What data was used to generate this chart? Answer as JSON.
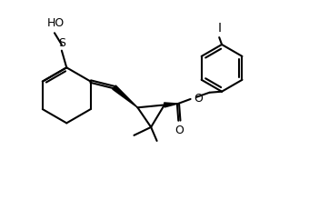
{
  "background_color": "#ffffff",
  "line_color": "#000000",
  "line_width": 1.5,
  "font_size": 9,
  "figsize": [
    3.62,
    2.42
  ],
  "dpi": 100,
  "xlim": [
    0,
    10
  ],
  "ylim": [
    0,
    6.7
  ]
}
